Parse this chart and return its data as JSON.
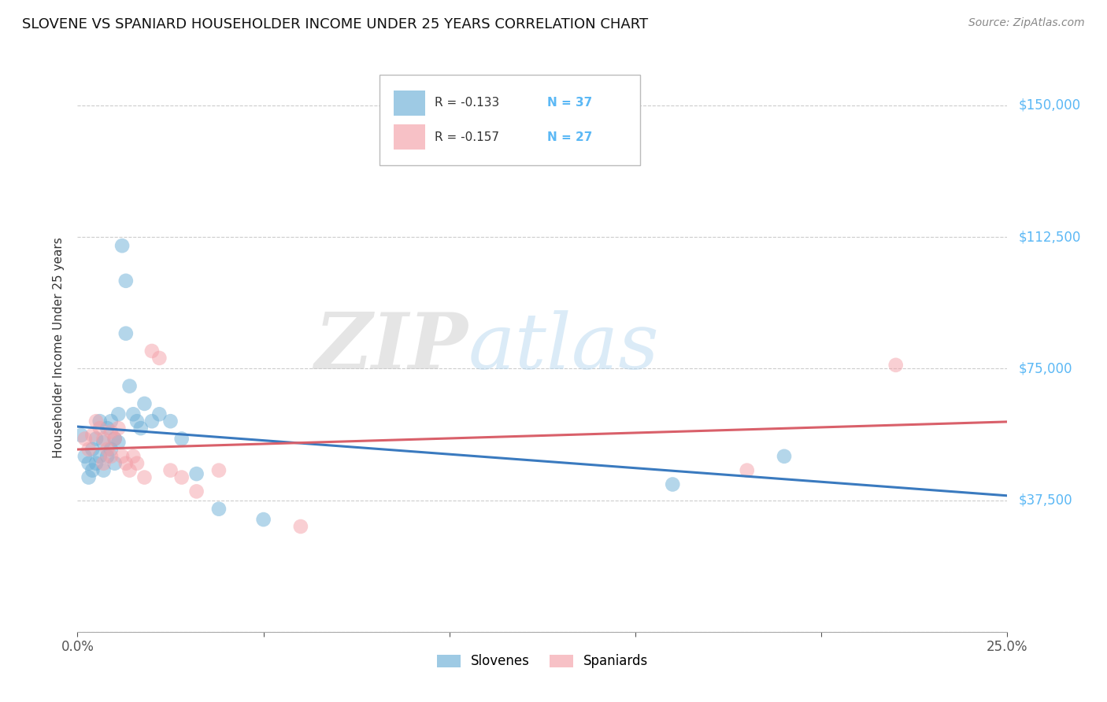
{
  "title": "SLOVENE VS SPANIARD HOUSEHOLDER INCOME UNDER 25 YEARS CORRELATION CHART",
  "source": "Source: ZipAtlas.com",
  "ylabel": "Householder Income Under 25 years",
  "legend_blue_label": "Slovenes",
  "legend_pink_label": "Spaniards",
  "legend_blue_r": "R = -0.133",
  "legend_blue_n": "N = 37",
  "legend_pink_r": "R = -0.157",
  "legend_pink_n": "N = 27",
  "yticks": [
    0,
    37500,
    75000,
    112500,
    150000
  ],
  "ytick_labels": [
    "",
    "$37,500",
    "$75,000",
    "$112,500",
    "$150,000"
  ],
  "xlim": [
    0.0,
    0.25
  ],
  "ylim": [
    0,
    162000
  ],
  "blue_color": "#6baed6",
  "pink_color": "#f4a0a8",
  "blue_line_color": "#3a7abf",
  "pink_line_color": "#d9606a",
  "right_label_color": "#5bb8f5",
  "background_color": "#ffffff",
  "watermark_zip": "ZIP",
  "watermark_atlas": "atlas",
  "blue_x": [
    0.001,
    0.002,
    0.003,
    0.003,
    0.004,
    0.004,
    0.005,
    0.005,
    0.006,
    0.006,
    0.007,
    0.007,
    0.008,
    0.008,
    0.009,
    0.009,
    0.01,
    0.01,
    0.011,
    0.011,
    0.012,
    0.013,
    0.013,
    0.014,
    0.015,
    0.016,
    0.017,
    0.018,
    0.02,
    0.022,
    0.025,
    0.028,
    0.032,
    0.038,
    0.05,
    0.16,
    0.19
  ],
  "blue_y": [
    56000,
    50000,
    48000,
    44000,
    52000,
    46000,
    55000,
    48000,
    60000,
    50000,
    54000,
    46000,
    58000,
    50000,
    60000,
    52000,
    55000,
    48000,
    62000,
    54000,
    110000,
    100000,
    85000,
    70000,
    62000,
    60000,
    58000,
    65000,
    60000,
    62000,
    60000,
    55000,
    45000,
    35000,
    32000,
    42000,
    50000
  ],
  "pink_x": [
    0.002,
    0.003,
    0.004,
    0.005,
    0.006,
    0.007,
    0.007,
    0.008,
    0.009,
    0.009,
    0.01,
    0.011,
    0.012,
    0.013,
    0.014,
    0.015,
    0.016,
    0.018,
    0.02,
    0.022,
    0.025,
    0.028,
    0.032,
    0.038,
    0.06,
    0.18,
    0.22
  ],
  "pink_y": [
    55000,
    52000,
    56000,
    60000,
    58000,
    55000,
    48000,
    52000,
    57000,
    50000,
    55000,
    58000,
    50000,
    48000,
    46000,
    50000,
    48000,
    44000,
    80000,
    78000,
    46000,
    44000,
    40000,
    46000,
    30000,
    46000,
    76000
  ]
}
